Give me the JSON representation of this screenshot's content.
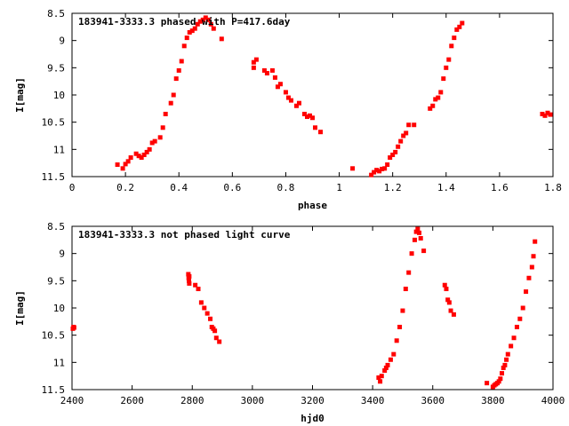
{
  "chart_data": [
    {
      "type": "scatter",
      "title": "183941-3333.3 phased with P=417.6day",
      "xlabel": "phase",
      "ylabel": "I[mag]",
      "xlim": [
        0,
        1.8
      ],
      "ylim": [
        8.5,
        11.5
      ],
      "y_inverted": true,
      "x_ticks": [
        "0",
        "0.2",
        "0.4",
        "0.6",
        "0.8",
        "1",
        "1.2",
        "1.4",
        "1.6",
        "1.8"
      ],
      "y_ticks": [
        "8.5",
        "9",
        "9.5",
        "10",
        "10.5",
        "11",
        "11.5"
      ],
      "marker_color": "#ff0000",
      "grid": false,
      "series": [
        {
          "x": [
            0.17,
            0.19,
            0.2,
            0.21,
            0.22,
            0.24,
            0.25,
            0.26,
            0.27,
            0.28,
            0.29,
            0.3,
            0.31,
            0.33,
            0.34,
            0.35,
            0.37,
            0.38,
            0.39,
            0.4,
            0.41,
            0.42,
            0.43,
            0.44,
            0.45,
            0.46,
            0.47,
            0.48,
            0.49,
            0.5,
            0.51,
            0.52,
            0.53,
            0.56,
            0.68,
            0.68,
            0.69,
            0.72,
            0.73,
            0.75,
            0.76,
            0.77,
            0.78,
            0.8,
            0.81,
            0.82,
            0.84,
            0.85,
            0.87,
            0.88,
            0.89,
            0.9,
            0.91,
            0.93,
            1.05,
            1.12,
            1.13,
            1.14,
            1.15,
            1.16,
            1.17,
            1.18,
            1.19,
            1.2,
            1.21,
            1.22,
            1.23,
            1.24,
            1.25,
            1.26,
            1.28,
            1.34,
            1.35,
            1.36,
            1.37,
            1.38,
            1.39,
            1.4,
            1.41,
            1.42,
            1.43,
            1.44,
            1.45,
            1.46,
            1.76,
            1.77,
            1.78,
            1.79
          ],
          "y": [
            11.28,
            11.35,
            11.27,
            11.22,
            11.15,
            11.08,
            11.12,
            11.15,
            11.1,
            11.05,
            11.0,
            10.88,
            10.85,
            10.78,
            10.6,
            10.35,
            10.15,
            10.0,
            9.7,
            9.55,
            9.38,
            9.1,
            8.95,
            8.85,
            8.82,
            8.78,
            8.7,
            8.65,
            8.62,
            8.58,
            8.62,
            8.7,
            8.78,
            8.97,
            9.4,
            9.5,
            9.35,
            9.55,
            9.6,
            9.55,
            9.68,
            9.85,
            9.8,
            9.95,
            10.05,
            10.1,
            10.2,
            10.15,
            10.35,
            10.4,
            10.38,
            10.42,
            10.6,
            10.68,
            11.35,
            11.47,
            11.42,
            11.38,
            11.4,
            11.36,
            11.35,
            11.28,
            11.15,
            11.1,
            11.05,
            10.95,
            10.85,
            10.75,
            10.7,
            10.55,
            10.55,
            10.25,
            10.2,
            10.08,
            10.05,
            9.95,
            9.7,
            9.5,
            9.35,
            9.1,
            8.95,
            8.8,
            8.75,
            8.68,
            10.35,
            10.38,
            10.33,
            10.36
          ]
        }
      ]
    },
    {
      "type": "scatter",
      "title": "183941-3333.3 not phased light curve",
      "xlabel": "hjd0",
      "ylabel": "I[mag]",
      "xlim": [
        2400,
        4000
      ],
      "ylim": [
        8.5,
        11.5
      ],
      "y_inverted": true,
      "x_ticks": [
        "2400",
        "2600",
        "2800",
        "3000",
        "3200",
        "3400",
        "3600",
        "3800",
        "4000"
      ],
      "y_ticks": [
        "8.5",
        "9",
        "9.5",
        "10",
        "10.5",
        "11",
        "11.5"
      ],
      "marker_color": "#ff0000",
      "grid": false,
      "series": [
        {
          "x": [
            2403,
            2405,
            2407,
            2787,
            2788,
            2789,
            2790,
            2790,
            2810,
            2820,
            2830,
            2840,
            2850,
            2860,
            2865,
            2870,
            2875,
            2880,
            2890,
            3420,
            3425,
            3430,
            3440,
            3445,
            3450,
            3460,
            3470,
            3480,
            3490,
            3500,
            3510,
            3520,
            3530,
            3540,
            3545,
            3550,
            3555,
            3560,
            3570,
            3640,
            3645,
            3650,
            3655,
            3660,
            3670,
            3780,
            3800,
            3805,
            3810,
            3815,
            3820,
            3825,
            3830,
            3835,
            3840,
            3845,
            3850,
            3860,
            3870,
            3880,
            3890,
            3900,
            3910,
            3920,
            3930,
            3935,
            3940
          ],
          "y": [
            10.38,
            10.35,
            10.36,
            9.38,
            9.45,
            9.5,
            9.55,
            9.42,
            9.58,
            9.65,
            9.9,
            10.0,
            10.1,
            10.2,
            10.35,
            10.38,
            10.42,
            10.55,
            10.62,
            11.28,
            11.35,
            11.25,
            11.15,
            11.1,
            11.05,
            10.95,
            10.85,
            10.6,
            10.35,
            10.05,
            9.65,
            9.35,
            9.0,
            8.75,
            8.6,
            8.55,
            8.62,
            8.72,
            8.95,
            9.58,
            9.65,
            9.85,
            9.9,
            10.05,
            10.12,
            11.38,
            11.45,
            11.42,
            11.4,
            11.38,
            11.35,
            11.3,
            11.2,
            11.1,
            11.05,
            10.95,
            10.85,
            10.7,
            10.55,
            10.35,
            10.2,
            10.0,
            9.7,
            9.45,
            9.25,
            9.05,
            8.78
          ]
        }
      ]
    }
  ]
}
